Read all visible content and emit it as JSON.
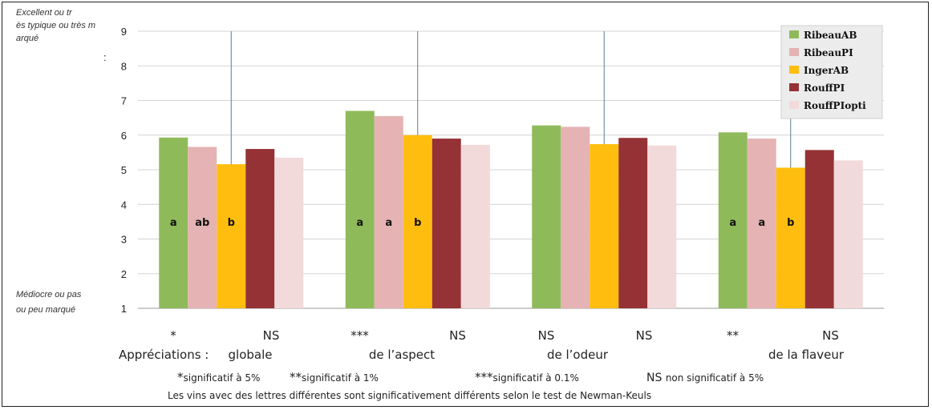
{
  "chart_data": {
    "type": "bar",
    "ylim": [
      1,
      9
    ],
    "yticks": [
      "1",
      "2",
      "3",
      "4",
      "5",
      "6",
      "7",
      "8",
      "9"
    ],
    "ylabel_top": "Excellent ou très typique ou très marqué",
    "ylabel_bottom": "Médiocre ou pas ou peu marqué",
    "categories": [
      "globale",
      "de l’aspect",
      "de l’odeur",
      "de la flaveur"
    ],
    "category_prefix": "Appréciations :",
    "series": [
      {
        "name": "RibeauAB",
        "color": "#8fba5a",
        "values": [
          5.93,
          6.7,
          6.28,
          6.08
        ]
      },
      {
        "name": "RibeauPI",
        "color": "#e5b3b3",
        "values": [
          5.66,
          6.55,
          6.24,
          5.9
        ]
      },
      {
        "name": "IngerAB",
        "color": "#ffbe0f",
        "values": [
          5.16,
          6.0,
          5.74,
          5.06
        ]
      },
      {
        "name": "RouffPI",
        "color": "#953235",
        "values": [
          5.6,
          5.9,
          5.92,
          5.57
        ]
      },
      {
        "name": "RouffPIopti",
        "color": "#f2d9da",
        "values": [
          5.35,
          5.72,
          5.7,
          5.27
        ]
      }
    ],
    "letters": [
      [
        "a",
        "ab",
        "b",
        "",
        ""
      ],
      [
        "a",
        "a",
        "b",
        "",
        ""
      ],
      [
        "",
        "",
        "",
        "",
        ""
      ],
      [
        "a",
        "a",
        "b",
        "",
        ""
      ]
    ],
    "significance": [
      {
        "a": "*",
        "b": "NS"
      },
      {
        "a": "***",
        "b": "NS"
      },
      {
        "a": "NS",
        "b": "NS"
      },
      {
        "a": "**",
        "b": "NS"
      }
    ],
    "legend_position": "top-right",
    "footnotes": {
      "line1": [
        {
          "sym": "*",
          "text": "significatif à 5%"
        },
        {
          "sym": "**",
          "text": "significatif à 1%"
        },
        {
          "sym": "***",
          "text": "significatif à 0.1%"
        },
        {
          "sym": "NS",
          "text": "non significatif à 5%"
        }
      ],
      "line2": "Les vins avec des lettres différentes sont significativement différents selon le test de Newman-Keuls"
    }
  }
}
